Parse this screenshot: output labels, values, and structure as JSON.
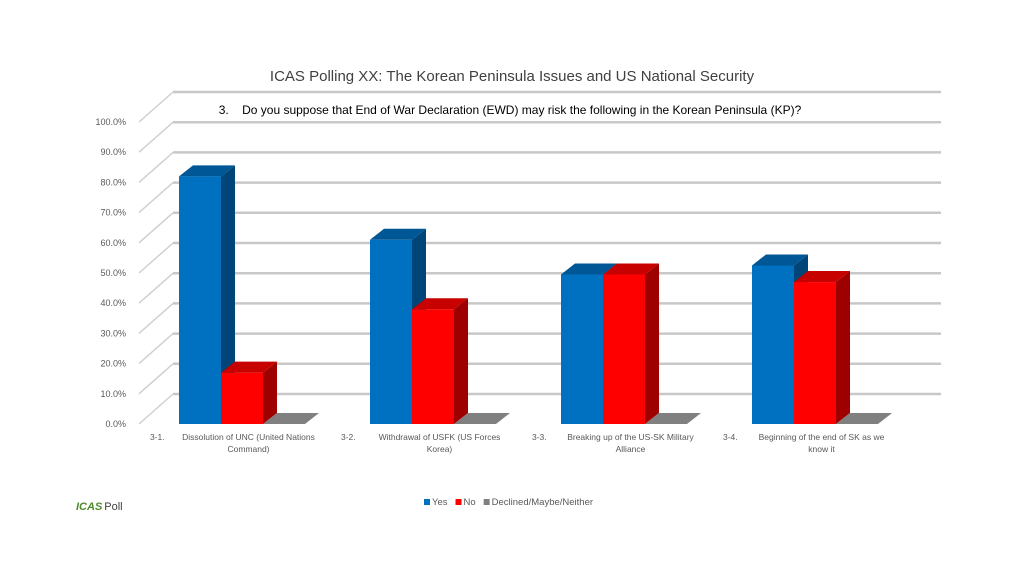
{
  "chart_data": {
    "type": "bar",
    "title": "ICAS Polling XX: The Korean Peninsula Issues and US National Security",
    "subtitle": "3.    Do you suppose that End of War Declaration (EWD) may risk the following in the Korean Peninsula (KP)?",
    "ylim": [
      0,
      100
    ],
    "yticks": [
      "0.0%",
      "10.0%",
      "20.0%",
      "30.0%",
      "40.0%",
      "50.0%",
      "60.0%",
      "70.0%",
      "80.0%",
      "90.0%",
      "100.0%"
    ],
    "categories": [
      {
        "num": "3-1.",
        "lines": [
          "Dissolution of UNC (United Nations",
          "Command)"
        ]
      },
      {
        "num": "3-2.",
        "lines": [
          "Withdrawal of USFK (US Forces",
          "Korea)"
        ]
      },
      {
        "num": "3-3.",
        "lines": [
          "Breaking up of the US-SK Military",
          "Alliance"
        ]
      },
      {
        "num": "3-4.",
        "lines": [
          "Beginning of the end of SK as we",
          "know it"
        ]
      }
    ],
    "series": [
      {
        "name": "Yes",
        "color": "#0070c0",
        "values": [
          82,
          61,
          49.5,
          52.5
        ]
      },
      {
        "name": "No",
        "color": "#ff0000",
        "values": [
          17,
          38,
          49.5,
          47
        ]
      },
      {
        "name": "Declined/Maybe/Neither",
        "color": "#808080",
        "values": [
          0,
          0,
          0,
          0
        ]
      }
    ],
    "grid": true,
    "legend": "bottom"
  },
  "footer": {
    "brand": "ICAS",
    "suffix": "Poll"
  }
}
